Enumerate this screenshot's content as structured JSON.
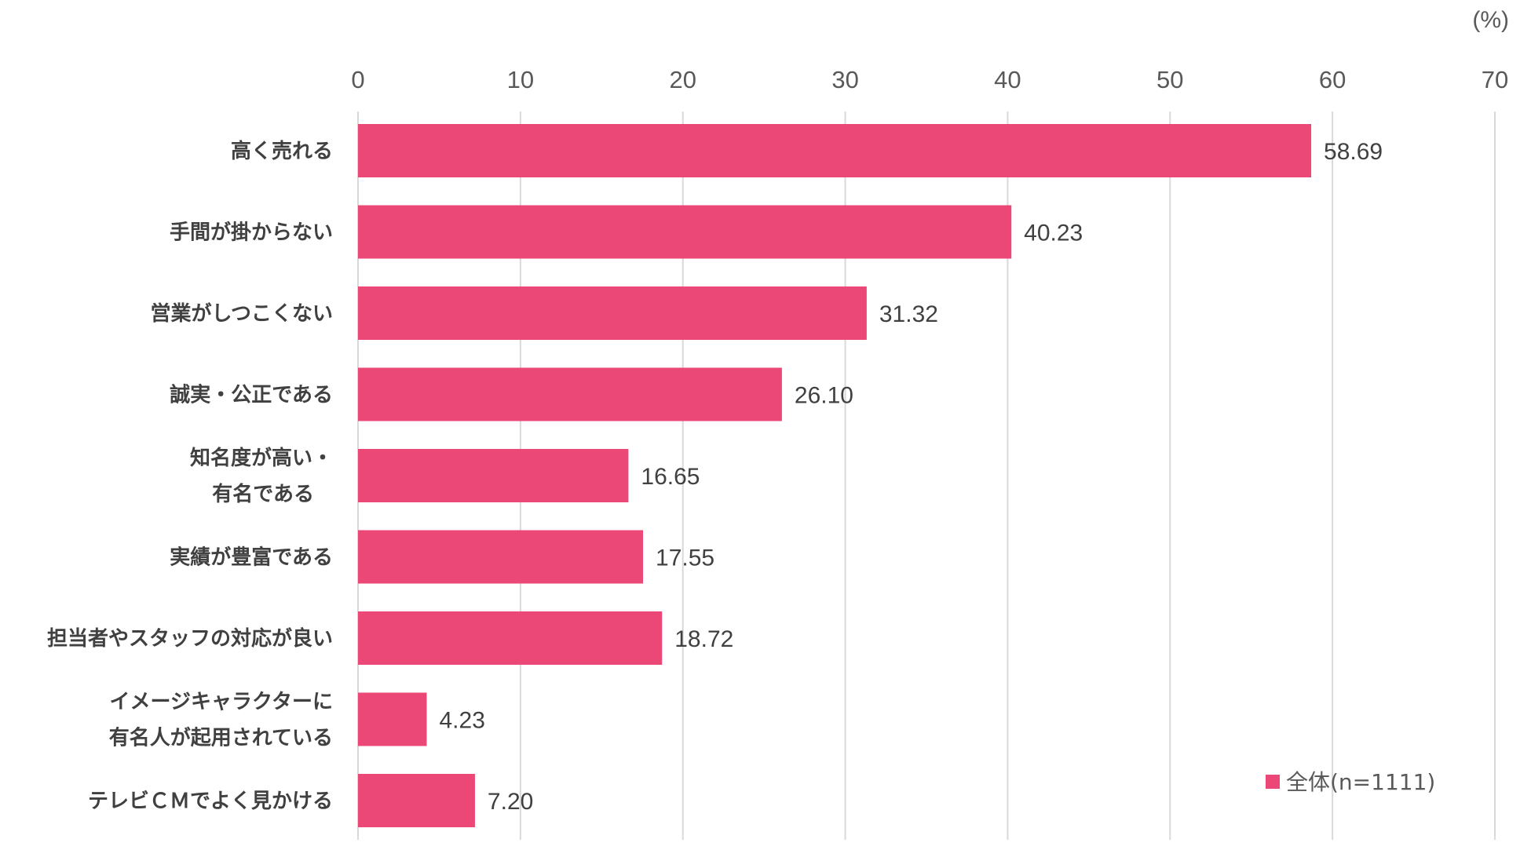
{
  "chart_data": {
    "type": "bar",
    "orientation": "horizontal",
    "unit_label": "(%)",
    "xlim": [
      0,
      70
    ],
    "xticks": [
      0,
      10,
      20,
      30,
      40,
      50,
      60,
      70
    ],
    "grid": true,
    "legend_position": "bottom-right",
    "series": [
      {
        "name": "全体(n=1111)",
        "color": "#EC4877",
        "values": [
          58.69,
          40.23,
          31.32,
          26.1,
          16.65,
          17.55,
          18.72,
          4.23,
          7.2
        ],
        "labels": [
          "58.69",
          "40.23",
          "31.32",
          "26.10",
          "16.65",
          "17.55",
          "18.72",
          "4.23",
          "7.20"
        ]
      }
    ],
    "categories": [
      [
        "高く売れる"
      ],
      [
        "手間が掛からない"
      ],
      [
        "営業がしつこくない"
      ],
      [
        "誠実・公正である"
      ],
      [
        "知名度が高い・",
        "有名である"
      ],
      [
        "実績が豊富である"
      ],
      [
        "担当者やスタッフの対応が良い"
      ],
      [
        "イメージキャラクターに",
        "有名人が起用されている"
      ],
      [
        "テレビＣＭでよく見かける"
      ]
    ]
  }
}
